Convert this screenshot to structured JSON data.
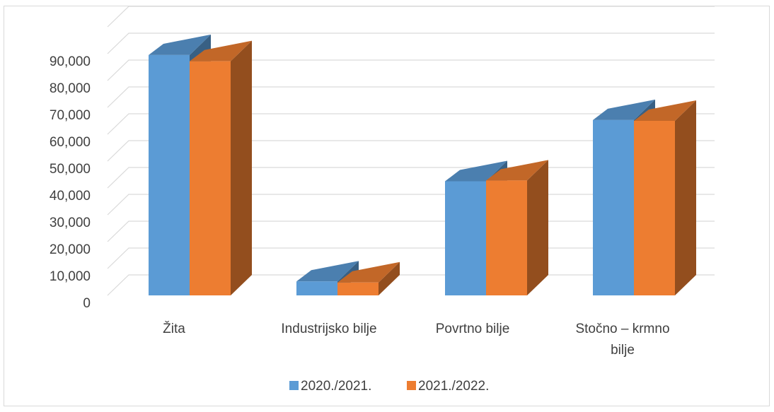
{
  "chart_data": {
    "type": "bar",
    "title": "",
    "xlabel": "",
    "ylabel": "",
    "categories": [
      [
        "Žita"
      ],
      [
        "Industrijsko bilje"
      ],
      [
        "Povrtno bilje"
      ],
      [
        "Stočno – krmno",
        "bilje"
      ]
    ],
    "series": [
      {
        "name": "2020./2021.",
        "values": [
          89500,
          5200,
          42500,
          65300
        ],
        "color": "#5b9bd5"
      },
      {
        "name": "2021./2022.",
        "values": [
          87200,
          4800,
          42800,
          65000
        ],
        "color": "#ed7d31"
      }
    ],
    "yticks": [
      "0",
      "10,000",
      "20,000",
      "30,000",
      "40,000",
      "50,000",
      "60,000",
      "70,000",
      "80,000",
      "90,000"
    ],
    "ylim": [
      0,
      100000
    ],
    "ystep": 10000,
    "grid": true,
    "style": "3d-clustered-column",
    "legend_position": "bottom",
    "colors": {
      "grid": "#d9d9d9",
      "text": "#404040",
      "border": "#d9d9d9"
    }
  }
}
